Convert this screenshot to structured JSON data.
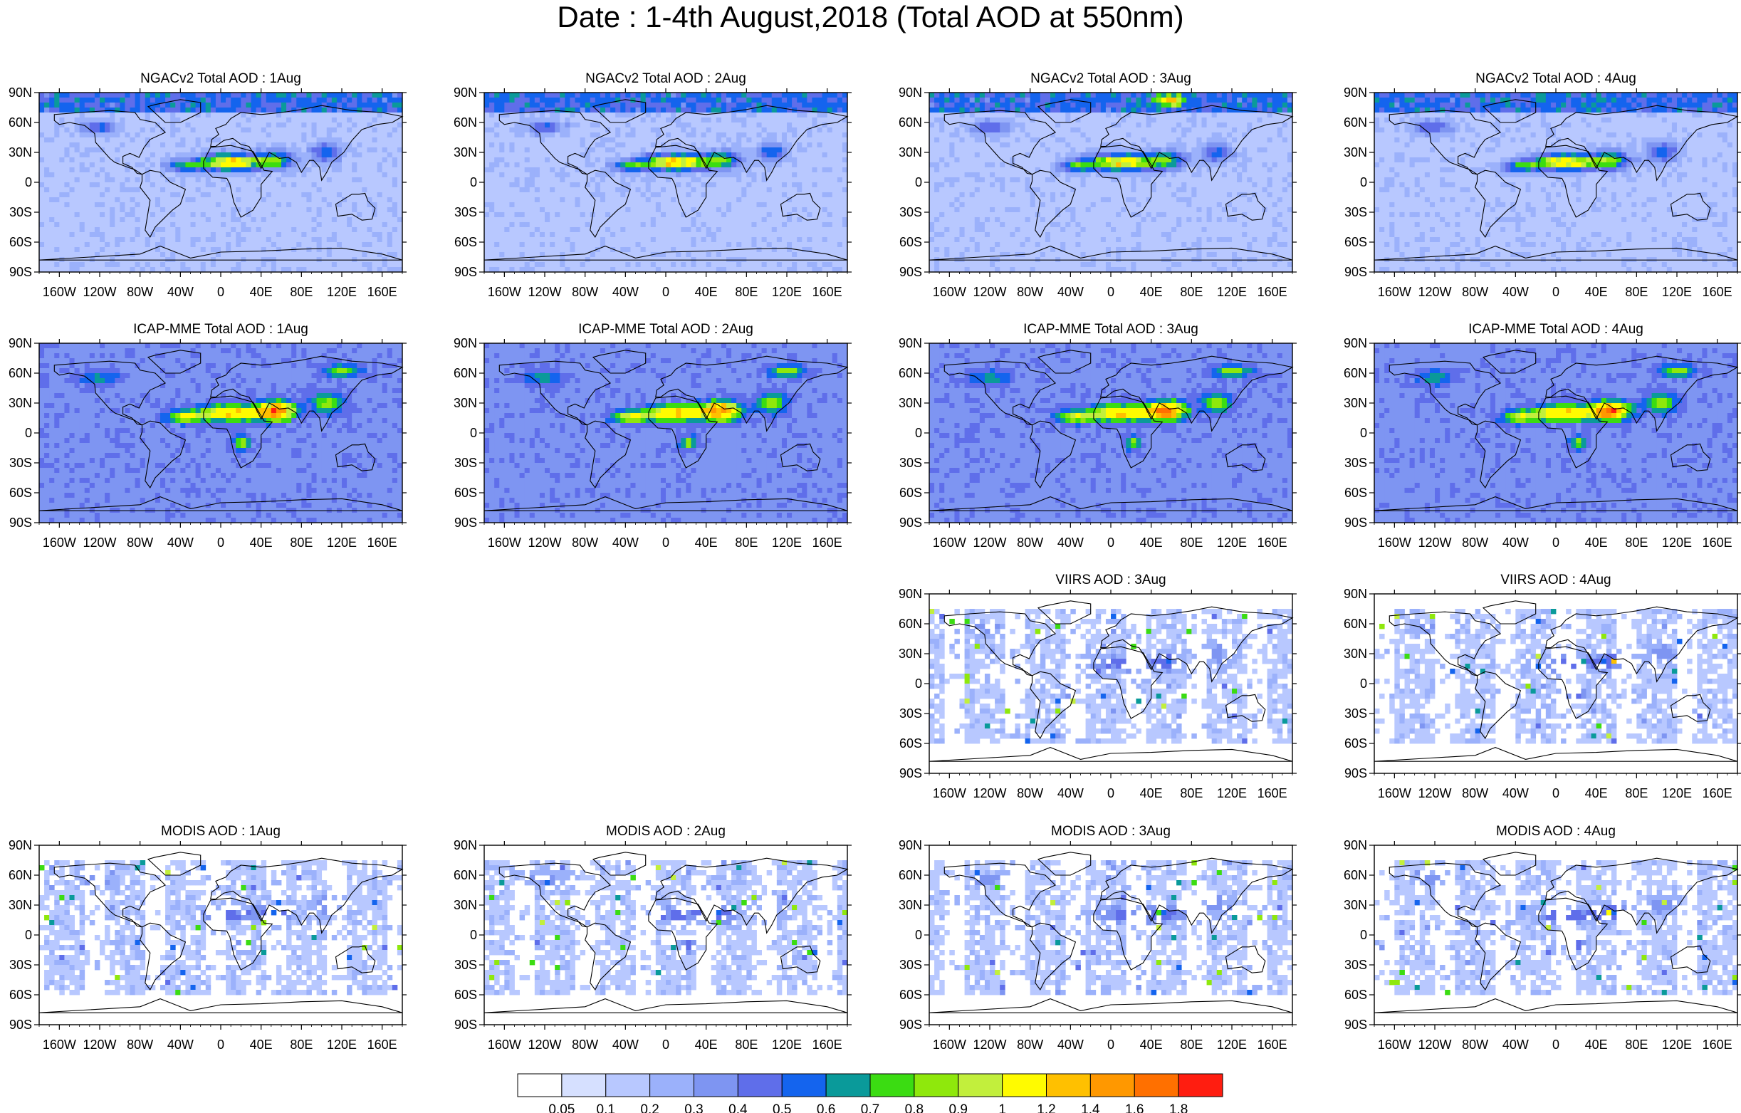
{
  "figure_title": "Date : 1-4th August,2018 (Total AOD at 550nm)",
  "panels": [
    {
      "row": 0,
      "col": 0,
      "title": "NGACv2 Total AOD : 1Aug"
    },
    {
      "row": 0,
      "col": 1,
      "title": "NGACv2 Total AOD : 2Aug"
    },
    {
      "row": 0,
      "col": 2,
      "title": "NGACv2 Total AOD : 3Aug"
    },
    {
      "row": 0,
      "col": 3,
      "title": "NGACv2 Total AOD : 4Aug"
    },
    {
      "row": 1,
      "col": 0,
      "title": "ICAP-MME Total AOD : 1Aug"
    },
    {
      "row": 1,
      "col": 1,
      "title": "ICAP-MME Total AOD : 2Aug"
    },
    {
      "row": 1,
      "col": 2,
      "title": "ICAP-MME Total AOD : 3Aug"
    },
    {
      "row": 1,
      "col": 3,
      "title": "ICAP-MME Total AOD : 4Aug"
    },
    {
      "row": 2,
      "col": 2,
      "title": "VIIRS AOD : 3Aug"
    },
    {
      "row": 2,
      "col": 3,
      "title": "VIIRS AOD : 4Aug"
    },
    {
      "row": 3,
      "col": 0,
      "title": "MODIS AOD : 1Aug"
    },
    {
      "row": 3,
      "col": 1,
      "title": "MODIS AOD : 2Aug"
    },
    {
      "row": 3,
      "col": 2,
      "title": "MODIS AOD : 3Aug"
    },
    {
      "row": 3,
      "col": 3,
      "title": "MODIS AOD : 4Aug"
    }
  ],
  "chart_data": {
    "type": "heatmap",
    "title": "Date : 1-4th August,2018 (Total AOD at 550nm)",
    "variable": "Total AOD at 550nm",
    "x_ticks": [
      "160W",
      "120W",
      "80W",
      "40W",
      "0",
      "40E",
      "80E",
      "120E",
      "160E"
    ],
    "x_tick_values": [
      -160,
      -120,
      -80,
      -40,
      0,
      40,
      80,
      120,
      160
    ],
    "y_ticks": [
      "90N",
      "60N",
      "30N",
      "0",
      "30S",
      "60S",
      "90S"
    ],
    "y_tick_values": [
      90,
      60,
      30,
      0,
      -30,
      -60,
      -90
    ],
    "xlim": [
      -180,
      180
    ],
    "ylim": [
      -90,
      90
    ],
    "colorbar": {
      "labels": [
        "0.05",
        "0.1",
        "0.2",
        "0.3",
        "0.4",
        "0.5",
        "0.6",
        "0.7",
        "0.8",
        "0.9",
        "1",
        "1.2",
        "1.4",
        "1.6",
        "1.8"
      ],
      "boundaries": [
        0.05,
        0.1,
        0.2,
        0.3,
        0.4,
        0.5,
        0.6,
        0.7,
        0.8,
        0.9,
        1,
        1.2,
        1.4,
        1.6,
        1.8
      ],
      "colors": [
        "#ffffff",
        "#d6e0ff",
        "#b8c8ff",
        "#9bb1fb",
        "#7e95f2",
        "#5f6eea",
        "#1464ee",
        "#0a9a9a",
        "#3bdc12",
        "#8fe80c",
        "#c2ef3c",
        "#fffb00",
        "#ffc000",
        "#ff9800",
        "#ff7000",
        "#ff1d10"
      ]
    },
    "map_ocean_color": "#e6ecff"
  }
}
